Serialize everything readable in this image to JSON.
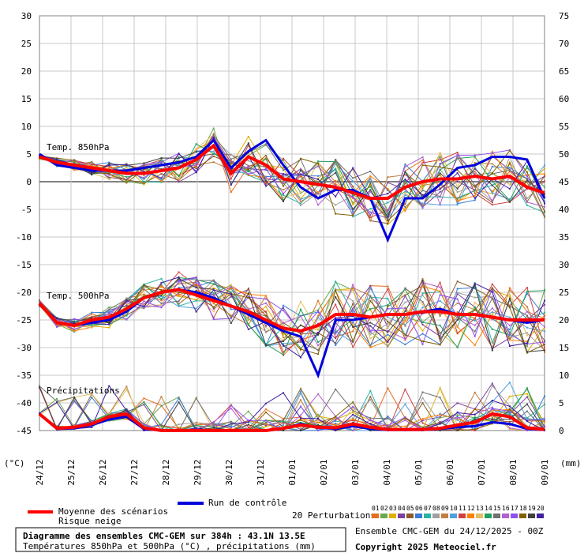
{
  "chart_data": {
    "type": "line",
    "title": "Diagramme des ensembles CMC-GEM sur 384h : 43.1N 13.5E",
    "subtitle": "Températures 850hPa et 500hPa (°C) , précipitations (mm)",
    "left_unit": "(°C)",
    "right_unit": "(mm)",
    "left_ticks": [
      "30",
      "25",
      "20",
      "15",
      "10",
      "5",
      "0",
      "-5",
      "-10",
      "-15",
      "-20",
      "-25",
      "-30",
      "-35",
      "-40",
      "-45"
    ],
    "right_ticks": [
      "75",
      "70",
      "65",
      "60",
      "55",
      "50",
      "45",
      "40",
      "35",
      "30",
      "25",
      "20",
      "15",
      "10",
      "5",
      "0"
    ],
    "ylim_left": [
      -45,
      30
    ],
    "ylim_right": [
      0,
      75
    ],
    "x_dates": [
      "24/12",
      "25/12",
      "26/12",
      "27/12",
      "28/12",
      "29/12",
      "30/12",
      "31/12",
      "01/01",
      "02/01",
      "03/01",
      "04/01",
      "05/01",
      "06/01",
      "07/01",
      "08/01",
      "09/01"
    ],
    "panel_labels": {
      "t850": "Temp. 850hPa",
      "t500": "Temp. 500hPa",
      "precip": "Précipitations"
    },
    "colors": {
      "mean": "#ff0000",
      "control": "#0000dd",
      "perturbations": [
        "#e86b1f",
        "#6aa84f",
        "#e0b000",
        "#7b3fa0",
        "#8b5a2b",
        "#3a7bd5",
        "#2ab3a0",
        "#a0a0a0",
        "#c08040",
        "#50a0e0",
        "#d04040",
        "#ff7f00",
        "#e0c060",
        "#20a060",
        "#707070",
        "#b060d0",
        "#9050f0",
        "#806000",
        "#404040",
        "#4020a0"
      ]
    },
    "series": [
      {
        "name": "Moyenne des scénarios",
        "t850": [
          4.5,
          3.5,
          3,
          2.5,
          2,
          1.5,
          1.5,
          2,
          2.5,
          4,
          6.5,
          1.5,
          4.5,
          3,
          0.5,
          0,
          -0.5,
          -1,
          -2,
          -3,
          -3,
          -1,
          0,
          0.5,
          0.5,
          1,
          0.5,
          1,
          -1,
          -2
        ],
        "t500": [
          -22,
          -25.5,
          -26,
          -25,
          -24.5,
          -23,
          -21,
          -20,
          -19.5,
          -20.5,
          -21.5,
          -22.5,
          -23.5,
          -25,
          -26.5,
          -27,
          -26,
          -24,
          -24,
          -24.5,
          -24,
          -24,
          -23.5,
          -23.5,
          -24,
          -24,
          -24.5,
          -25,
          -25,
          -25
        ],
        "precip": [
          3,
          0.4,
          0.6,
          1.2,
          2.5,
          3,
          0.5,
          0,
          0,
          0,
          0,
          0,
          0,
          0,
          0.4,
          1,
          0.6,
          0.5,
          1.2,
          0.6,
          0.2,
          0.2,
          0.2,
          0.4,
          1,
          1.5,
          3,
          2.5,
          0.5,
          0.2
        ]
      },
      {
        "name": "Run de contrôle",
        "t850": [
          5,
          3,
          2.5,
          2,
          2,
          2,
          2.5,
          3,
          3.5,
          4.5,
          7.5,
          2.5,
          5.5,
          7.5,
          3,
          -1,
          -3,
          -1.5,
          -1.5,
          -3,
          -10.5,
          -3,
          -3,
          -0.5,
          2.5,
          3,
          4.5,
          4.5,
          4,
          -3
        ],
        "t500": [
          -22,
          -25.5,
          -26,
          -25.5,
          -25,
          -23.5,
          -21,
          -20,
          -19.5,
          -20,
          -21,
          -22.5,
          -24,
          -25.5,
          -27,
          -28,
          -35,
          -25,
          -25,
          -24.5,
          -24,
          -24,
          -23.5,
          -23,
          -24,
          -24,
          -24.5,
          -25,
          -25.5,
          -25
        ],
        "precip": [
          3,
          0.3,
          0.4,
          1,
          2,
          2.5,
          0.3,
          0,
          0,
          0,
          0,
          0,
          0,
          0,
          0.4,
          1.2,
          0.5,
          0.3,
          0.8,
          0.3,
          0.1,
          0.1,
          0.1,
          0.3,
          0.6,
          0.8,
          1.5,
          1.2,
          0.3,
          0.1
        ]
      }
    ],
    "legend": {
      "mean_label": "Moyenne des scénarios",
      "snow_label": "Risque neige",
      "control_label": "Run de contrôle",
      "perturbations_label": "20 Perturbations",
      "perturbation_ids": [
        "01",
        "02",
        "03",
        "04",
        "05",
        "06",
        "07",
        "08",
        "09",
        "10",
        "11",
        "12",
        "13",
        "14",
        "15",
        "16",
        "17",
        "18",
        "19",
        "20"
      ]
    },
    "grid": true
  },
  "footer": {
    "title": "Diagramme des ensembles CMC-GEM sur 384h : 43.1N 13.5E",
    "subtitle": "Températures 850hPa et 500hPa (°C) , précipitations (mm)",
    "run_info": "Ensemble CMC-GEM du 24/12/2025 - 00Z",
    "copyright": "Copyright 2025 Meteociel.fr"
  }
}
